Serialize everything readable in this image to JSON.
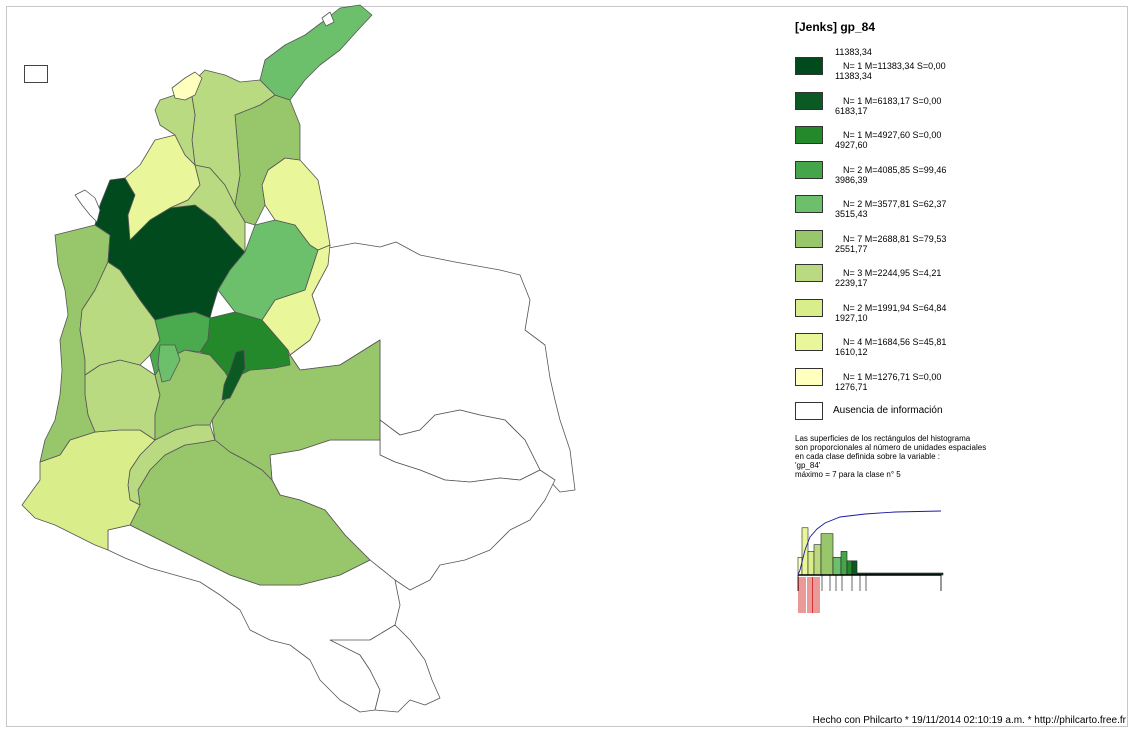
{
  "legend": {
    "title": "[Jenks] gp_84",
    "classes": [
      {
        "upper": "11383,34",
        "lower": "11383,34",
        "stats": "N= 1  M=11383,34  S=0,00",
        "color": "#004a1e"
      },
      {
        "upper": "11383,34",
        "lower": "6183,17",
        "stats": "N= 1  M=6183,17  S=0,00",
        "color": "#0c5a23"
      },
      {
        "upper": "6183,17",
        "lower": "4927,60",
        "stats": "N= 1  M=4927,60  S=0,00",
        "color": "#23892a"
      },
      {
        "upper": "4927,60",
        "lower": "3986,39",
        "stats": "N= 2  M=4085,85  S=99,46",
        "color": "#45a54a"
      },
      {
        "upper": "3986,39",
        "lower": "3515,43",
        "stats": "N= 2  M=3577,81  S=62,37",
        "color": "#6dc06b"
      },
      {
        "upper": "3515,43",
        "lower": "2551,77",
        "stats": "N= 7  M=2688,81  S=79,53",
        "color": "#98c66a"
      },
      {
        "upper": "2551,77",
        "lower": "2239,17",
        "stats": "N= 3  M=2244,95  S=4,21",
        "color": "#b9da80"
      },
      {
        "upper": "2239,17",
        "lower": "1927,10",
        "stats": "N= 2  M=1991,94  S=64,84",
        "color": "#d9ee8a"
      },
      {
        "upper": "1927,10",
        "lower": "1610,12",
        "stats": "N= 4  M=1684,56  S=45,81",
        "color": "#e9f79a"
      },
      {
        "upper": "1610,12",
        "lower": "1276,71",
        "stats": "N= 1  M=1276,71  S=0,00",
        "color": "#ffffbe"
      }
    ],
    "first_upper": "11383,34",
    "absence": "Ausencia de información",
    "note": [
      "Las superficies de los rectángulos del histograma",
      "son proporcionales al número de unidades espaciales",
      "en cada clase definida sobre la variable :",
      "'gp_84'",
      "máximo = 7 para la clase n° 5"
    ]
  },
  "histogram": {
    "counts": [
      1,
      4,
      2,
      3,
      7,
      2,
      2,
      1,
      1,
      1
    ],
    "bar_color": "#000000",
    "curve_color": "#1a1aa0",
    "tick_color": "#cc0000"
  },
  "footer": "Hecho con Philcarto * 19/11/2014 02:10:19 a.m. * http://philcarto.free.fr",
  "colors": {
    "outline": "#555555",
    "empty": "#ffffff"
  }
}
